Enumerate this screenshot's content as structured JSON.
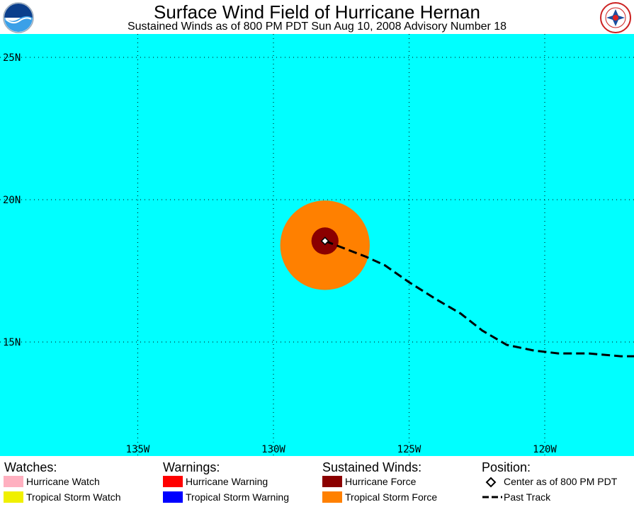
{
  "header": {
    "title": "Surface Wind Field of Hurricane Hernan",
    "subtitle": "Sustained Winds as of 800 PM PDT Sun Aug 10, 2008    Advisory Number 18",
    "logo_left": "NOAA",
    "logo_right": "NATIONAL WEATHER SERVICE"
  },
  "map": {
    "background_color": "#00ffff",
    "grid": true,
    "lat_labels": [
      "25N",
      "20N",
      "15N"
    ],
    "lon_labels": [
      "135W",
      "130W",
      "125W",
      "120W"
    ],
    "storm_center": {
      "lat": 18.4,
      "lon": 128.1
    },
    "tropical_storm_force_radius_deg": 1.65,
    "hurricane_force_radius_deg": 0.5,
    "past_track": [
      {
        "lat": 18.4,
        "lon": 128.1
      },
      {
        "lat": 18.0,
        "lon": 126.6
      },
      {
        "lat": 17.7,
        "lon": 125.9
      },
      {
        "lat": 17.1,
        "lon": 125.0
      },
      {
        "lat": 16.5,
        "lon": 124.0
      },
      {
        "lat": 16.0,
        "lon": 123.1
      },
      {
        "lat": 15.4,
        "lon": 122.3
      },
      {
        "lat": 14.9,
        "lon": 121.4
      },
      {
        "lat": 14.7,
        "lon": 120.4
      },
      {
        "lat": 14.6,
        "lon": 119.5
      },
      {
        "lat": 14.6,
        "lon": 118.4
      },
      {
        "lat": 14.5,
        "lon": 117.2
      },
      {
        "lat": 14.5,
        "lon": 116.7
      }
    ],
    "colors": {
      "tropical_storm_force": "#ff8000",
      "hurricane_force": "#8b0000"
    }
  },
  "legend": {
    "watches": {
      "heading": "Watches:",
      "items": [
        {
          "label": "Hurricane Watch",
          "color": "#ffb0c0"
        },
        {
          "label": "Tropical Storm Watch",
          "color": "#f0f000"
        }
      ]
    },
    "warnings": {
      "heading": "Warnings:",
      "items": [
        {
          "label": "Hurricane Warning",
          "color": "#ff0000"
        },
        {
          "label": "Tropical Storm Warning",
          "color": "#0000ff"
        }
      ]
    },
    "winds": {
      "heading": "Sustained Winds:",
      "items": [
        {
          "label": "Hurricane Force",
          "color": "#8b0000"
        },
        {
          "label": "Tropical Storm Force",
          "color": "#ff8000"
        }
      ]
    },
    "position": {
      "heading": "Position:",
      "items": [
        {
          "label": "Center as of 800 PM PDT",
          "icon": "diamond-icon"
        },
        {
          "label": "Past Track",
          "icon": "dashed-line-icon"
        }
      ]
    }
  }
}
